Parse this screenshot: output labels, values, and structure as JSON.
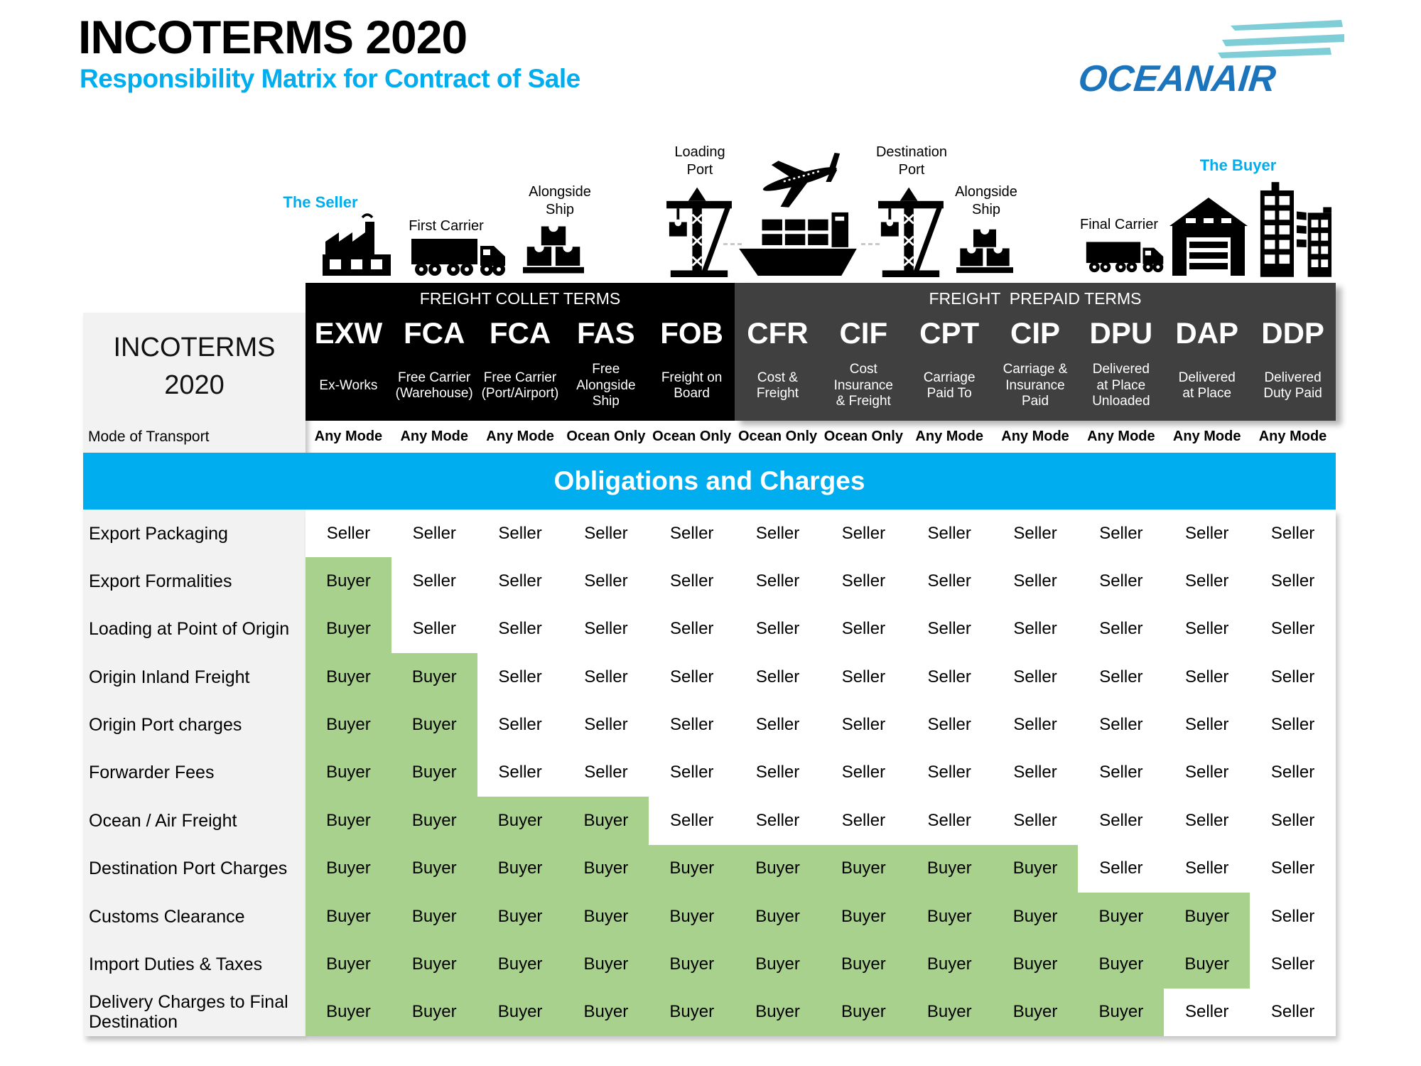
{
  "title": "INCOTERMS 2020",
  "subtitle": "Responsibility Matrix for Contract of Sale",
  "logo": {
    "text": "OCEANAIR"
  },
  "journey": {
    "seller_label": "The Seller",
    "buyer_label": "The Buyer",
    "stops": {
      "first_carrier": "First Carrier",
      "alongside_ship_origin": "Alongside\nShip",
      "loading_port": "Loading\nPort",
      "destination_port": "Destination\nPort",
      "alongside_ship_destination": "Alongside\nShip",
      "final_carrier": "Final Carrier"
    }
  },
  "table": {
    "corner_title": "INCOTERMS\n2020",
    "mode_label": "Mode of Transport",
    "band_title": "Obligations and Charges",
    "groups": [
      {
        "label": "FREIGHT COLLET TERMS"
      },
      {
        "label": "FREIGHT  PREPAID TERMS"
      }
    ],
    "columns": [
      {
        "code": "EXW",
        "name": "Ex-Works",
        "mode": "Any Mode",
        "group": 0
      },
      {
        "code": "FCA",
        "name": "Free Carrier\n(Warehouse)",
        "mode": "Any Mode",
        "group": 0
      },
      {
        "code": "FCA",
        "name": "Free Carrier\n(Port/Airport)",
        "mode": "Any Mode",
        "group": 0
      },
      {
        "code": "FAS",
        "name": "Free\nAlongside\nShip",
        "mode": "Ocean Only",
        "group": 0
      },
      {
        "code": "FOB",
        "name": "Freight on\nBoard",
        "mode": "Ocean Only",
        "group": 0
      },
      {
        "code": "CFR",
        "name": "Cost &\nFreight",
        "mode": "Ocean Only",
        "group": 1
      },
      {
        "code": "CIF",
        "name": "Cost\nInsurance\n& Freight",
        "mode": "Ocean Only",
        "group": 1
      },
      {
        "code": "CPT",
        "name": "Carriage\nPaid To",
        "mode": "Any Mode",
        "group": 1
      },
      {
        "code": "CIP",
        "name": "Carriage &\nInsurance\nPaid",
        "mode": "Any Mode",
        "group": 1
      },
      {
        "code": "DPU",
        "name": "Delivered\nat Place\nUnloaded",
        "mode": "Any Mode",
        "group": 1
      },
      {
        "code": "DAP",
        "name": "Delivered\nat Place",
        "mode": "Any Mode",
        "group": 1
      },
      {
        "code": "DDP",
        "name": "Delivered\nDuty Paid",
        "mode": "Any Mode",
        "group": 1
      }
    ],
    "rows": [
      {
        "label": "Export Packaging",
        "values": [
          "Seller",
          "Seller",
          "Seller",
          "Seller",
          "Seller",
          "Seller",
          "Seller",
          "Seller",
          "Seller",
          "Seller",
          "Seller",
          "Seller"
        ]
      },
      {
        "label": "Export Formalities",
        "values": [
          "Buyer",
          "Seller",
          "Seller",
          "Seller",
          "Seller",
          "Seller",
          "Seller",
          "Seller",
          "Seller",
          "Seller",
          "Seller",
          "Seller"
        ]
      },
      {
        "label": "Loading at Point of Origin",
        "values": [
          "Buyer",
          "Seller",
          "Seller",
          "Seller",
          "Seller",
          "Seller",
          "Seller",
          "Seller",
          "Seller",
          "Seller",
          "Seller",
          "Seller"
        ]
      },
      {
        "label": "Origin Inland Freight",
        "values": [
          "Buyer",
          "Buyer",
          "Seller",
          "Seller",
          "Seller",
          "Seller",
          "Seller",
          "Seller",
          "Seller",
          "Seller",
          "Seller",
          "Seller"
        ]
      },
      {
        "label": "Origin Port charges",
        "values": [
          "Buyer",
          "Buyer",
          "Seller",
          "Seller",
          "Seller",
          "Seller",
          "Seller",
          "Seller",
          "Seller",
          "Seller",
          "Seller",
          "Seller"
        ]
      },
      {
        "label": "Forwarder Fees",
        "values": [
          "Buyer",
          "Buyer",
          "Seller",
          "Seller",
          "Seller",
          "Seller",
          "Seller",
          "Seller",
          "Seller",
          "Seller",
          "Seller",
          "Seller"
        ]
      },
      {
        "label": "Ocean / Air Freight",
        "values": [
          "Buyer",
          "Buyer",
          "Buyer",
          "Buyer",
          "Seller",
          "Seller",
          "Seller",
          "Seller",
          "Seller",
          "Seller",
          "Seller",
          "Seller"
        ]
      },
      {
        "label": "Destination Port Charges",
        "values": [
          "Buyer",
          "Buyer",
          "Buyer",
          "Buyer",
          "Buyer",
          "Buyer",
          "Buyer",
          "Buyer",
          "Buyer",
          "Seller",
          "Seller",
          "Seller"
        ]
      },
      {
        "label": "Customs Clearance",
        "values": [
          "Buyer",
          "Buyer",
          "Buyer",
          "Buyer",
          "Buyer",
          "Buyer",
          "Buyer",
          "Buyer",
          "Buyer",
          "Buyer",
          "Buyer",
          "Seller"
        ]
      },
      {
        "label": "Import Duties & Taxes",
        "values": [
          "Buyer",
          "Buyer",
          "Buyer",
          "Buyer",
          "Buyer",
          "Buyer",
          "Buyer",
          "Buyer",
          "Buyer",
          "Buyer",
          "Buyer",
          "Seller"
        ]
      },
      {
        "label": "Delivery Charges to Final Destination",
        "values": [
          "Buyer",
          "Buyer",
          "Buyer",
          "Buyer",
          "Buyer",
          "Buyer",
          "Buyer",
          "Buyer",
          "Buyer",
          "Buyer",
          "Seller",
          "Seller"
        ]
      }
    ]
  },
  "colors": {
    "accent_cyan": "#00AEEF",
    "buyer_green": "#A9D18E",
    "header_black": "#000000",
    "header_gray": "#404040",
    "panel_gray": "#F2F2F2",
    "logo_blue": "#1C75BC",
    "logo_teal": "#7FCDD6"
  }
}
